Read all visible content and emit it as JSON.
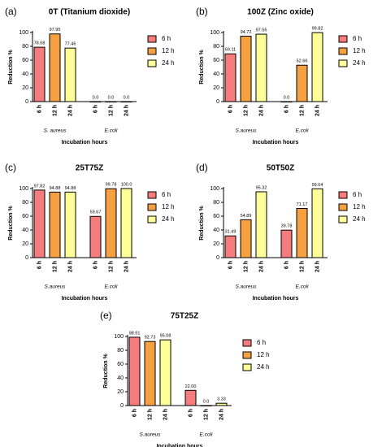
{
  "chart_data": [
    {
      "type": "bar",
      "panel_label": "(a)",
      "title": "0T (Titanium dioxide)",
      "ylabel": "Reduction %",
      "xlabel": "Incubation hours",
      "categories": [
        "S. aureus",
        "E.coli"
      ],
      "ylim": [
        0,
        100
      ],
      "yticks": [
        0,
        20,
        40,
        60,
        80,
        100
      ],
      "series": [
        {
          "name": "6 h",
          "color": "#f47c7c",
          "values": [
            78.68,
            0
          ],
          "value_labels": [
            "78.68",
            "0.0"
          ]
        },
        {
          "name": "12 h",
          "color": "#f5a142",
          "values": [
            97.95,
            0
          ],
          "value_labels": [
            "97.95",
            "0.0"
          ]
        },
        {
          "name": "24 h",
          "color": "#ffff99",
          "values": [
            77.46,
            0
          ],
          "value_labels": [
            "77.46",
            "0.0"
          ]
        }
      ]
    },
    {
      "type": "bar",
      "panel_label": "(b)",
      "title": "100Z (Zinc oxide)",
      "ylabel": "Reduction %",
      "xlabel": "Incubation hours",
      "categories": [
        "S.aureus",
        "E.coli"
      ],
      "ylim": [
        0,
        100
      ],
      "yticks": [
        0,
        20,
        40,
        60,
        80,
        100
      ],
      "series": [
        {
          "name": "6 h",
          "color": "#f47c7c",
          "values": [
            69.11,
            0
          ],
          "value_labels": [
            "69.11",
            "0.0"
          ]
        },
        {
          "name": "12 h",
          "color": "#f5a142",
          "values": [
            94.72,
            52.66
          ],
          "value_labels": [
            "94.72",
            "52.66"
          ]
        },
        {
          "name": "24 h",
          "color": "#ffff99",
          "values": [
            97.56,
            99.82
          ],
          "value_labels": [
            "97.56",
            "99.82"
          ]
        }
      ]
    },
    {
      "type": "bar",
      "panel_label": "(c)",
      "title": "25T75Z",
      "ylabel": "Reduction %",
      "xlabel": "Incubation hours",
      "categories": [
        "S.aureus",
        "E.coli"
      ],
      "ylim": [
        0,
        100
      ],
      "yticks": [
        0,
        20,
        40,
        60,
        80,
        100
      ],
      "series": [
        {
          "name": "6 h",
          "color": "#f47c7c",
          "values": [
            97.82,
            59.67
          ],
          "value_labels": [
            "97.82",
            "59.67"
          ]
        },
        {
          "name": "12 h",
          "color": "#f5a142",
          "values": [
            94.88,
            99.78
          ],
          "value_labels": [
            "94.88",
            "99.78"
          ]
        },
        {
          "name": "24 h",
          "color": "#ffff99",
          "values": [
            94.88,
            100
          ],
          "value_labels": [
            "94.88",
            "100.0"
          ]
        }
      ]
    },
    {
      "type": "bar",
      "panel_label": "(d)",
      "title": "50T50Z",
      "ylabel": "Reduction %",
      "xlabel": "Incubation hours",
      "categories": [
        "S.aureus",
        "E.coli"
      ],
      "ylim": [
        0,
        100
      ],
      "yticks": [
        0,
        20,
        40,
        60,
        80,
        100
      ],
      "series": [
        {
          "name": "6 h",
          "color": "#f47c7c",
          "values": [
            31.49,
            39.78
          ],
          "value_labels": [
            "31.49",
            "39.78"
          ]
        },
        {
          "name": "12 h",
          "color": "#f5a142",
          "values": [
            54.89,
            71.17
          ],
          "value_labels": [
            "54.89",
            "71.17"
          ]
        },
        {
          "name": "24 h",
          "color": "#ffff99",
          "values": [
            95.32,
            99.64
          ],
          "value_labels": [
            "95.32",
            "99.64"
          ]
        }
      ]
    },
    {
      "type": "bar",
      "panel_label": "(e)",
      "title": "75T25Z",
      "ylabel": "Reduction %",
      "xlabel": "Incubation hours",
      "categories": [
        "S.aureus",
        "E.coli"
      ],
      "ylim": [
        0,
        100
      ],
      "yticks": [
        0,
        20,
        40,
        60,
        80,
        100
      ],
      "series": [
        {
          "name": "6 h",
          "color": "#f47c7c",
          "values": [
            98.91,
            22
          ],
          "value_labels": [
            "98.91",
            "22.00"
          ]
        },
        {
          "name": "12 h",
          "color": "#f5a142",
          "values": [
            92.73,
            0
          ],
          "value_labels": [
            "92.73",
            "0.0"
          ]
        },
        {
          "name": "24 h",
          "color": "#ffff99",
          "values": [
            95.08,
            3.33
          ],
          "value_labels": [
            "95.08",
            "3.33"
          ]
        }
      ]
    }
  ]
}
